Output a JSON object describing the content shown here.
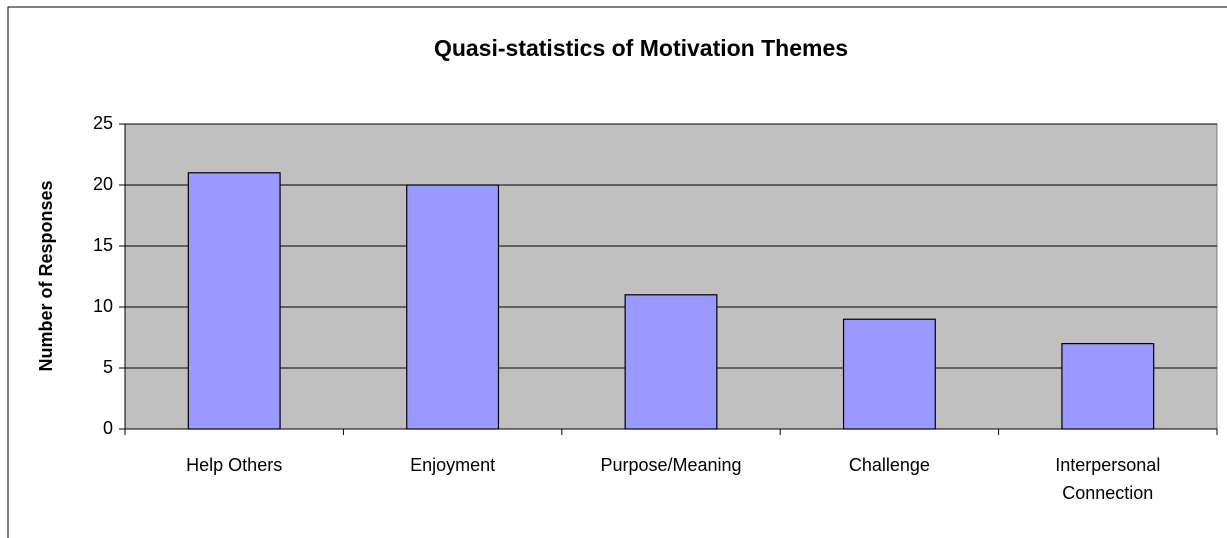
{
  "chart_data": {
    "type": "bar",
    "title": "Quasi-statistics of Motivation Themes",
    "y_label": "Number of Responses",
    "categories": [
      "Help Others",
      "Enjoyment",
      "Purpose/Meaning",
      "Challenge",
      "Interpersonal Connection"
    ],
    "values": [
      21,
      20,
      11,
      9,
      7
    ],
    "color": "#9999ff",
    "plot_background": "#c0c0c0",
    "ylim": [
      0,
      25
    ],
    "yticks": [
      0,
      5,
      10,
      15,
      20,
      25
    ],
    "grid": true
  }
}
